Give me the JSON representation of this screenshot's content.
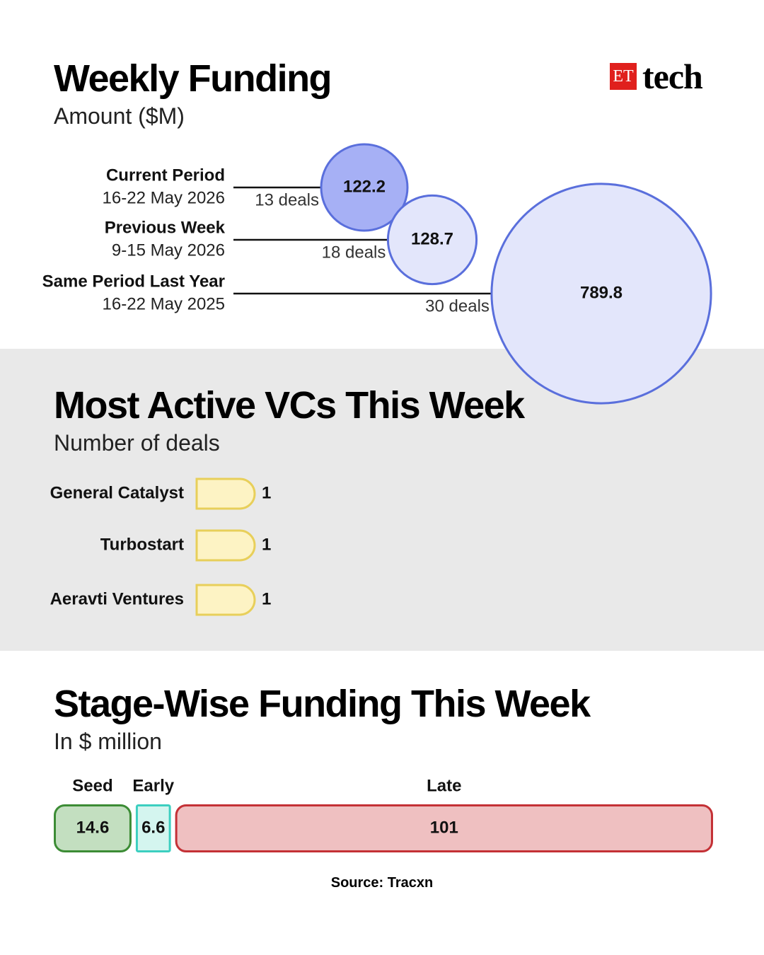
{
  "header": {
    "logo_et": "ET",
    "logo_tech": "tech"
  },
  "sections": {
    "weekly": {
      "title": "Weekly Funding",
      "subtitle": "Amount ($M)"
    },
    "vcs": {
      "title": "Most Active VCs This Week",
      "subtitle": "Number of deals"
    },
    "stage": {
      "title": "Stage-Wise Funding This Week",
      "subtitle": "In $ million"
    }
  },
  "source": "Source: Tracxn",
  "colors": {
    "bubble_current_fill": "#a6b0f5",
    "bubble_other_fill": "#e3e6fb",
    "bubble_stroke": "#5a6fdc",
    "vc_bar_fill": "#fdf3c4",
    "vc_bar_stroke": "#e8cf5a",
    "seed_fill": "#c3dfc0",
    "seed_stroke": "#3c8c35",
    "early_fill": "#d4f5ef",
    "early_stroke": "#3ccfc0",
    "late_fill": "#efc0c1",
    "late_stroke": "#c43136"
  },
  "chart_data": [
    {
      "type": "bubble",
      "periods": [
        {
          "label": "Current Period",
          "dates": "16-22 May 2026",
          "value": 122.2,
          "value_label": "122.2",
          "deals_label": "13 deals",
          "highlight": true
        },
        {
          "label": "Previous Week",
          "dates": "9-15 May 2026",
          "value": 128.7,
          "value_label": "128.7",
          "deals_label": "18 deals",
          "highlight": false
        },
        {
          "label": "Same Period Last Year",
          "dates": "16-22 May 2025",
          "value": 789.8,
          "value_label": "789.8",
          "deals_label": "30 deals",
          "highlight": false
        }
      ]
    },
    {
      "type": "bar",
      "categories": [
        "General Catalyst",
        "Turbostart",
        "Aeravti Ventures"
      ],
      "values": [
        1,
        1,
        1
      ],
      "value_labels": [
        "1",
        "1",
        "1"
      ]
    },
    {
      "type": "stacked-bar",
      "categories": [
        "Seed",
        "Early",
        "Late"
      ],
      "values": [
        14.6,
        6.6,
        101
      ],
      "value_labels": [
        "14.6",
        "6.6",
        "101"
      ]
    }
  ]
}
